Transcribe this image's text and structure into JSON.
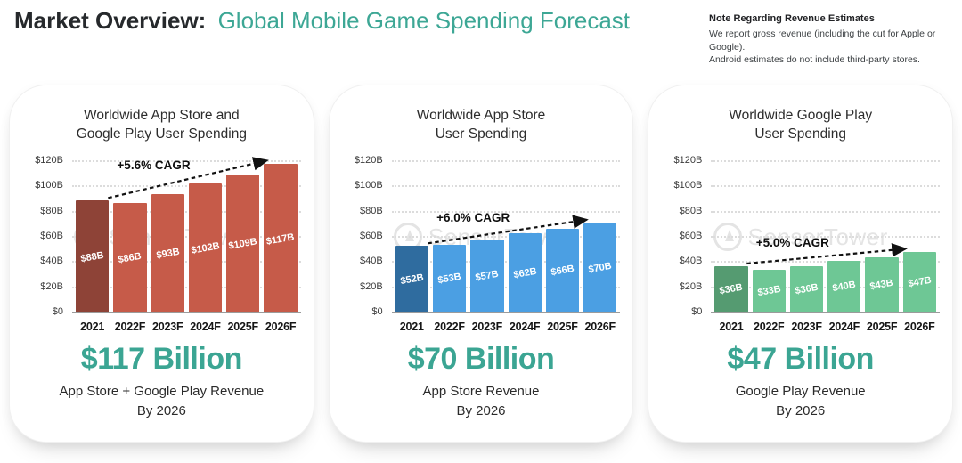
{
  "header": {
    "title_bold": "Market Overview:",
    "title_accent": "Global Mobile Game Spending Forecast"
  },
  "note": {
    "heading": "Note Regarding Revenue Estimates",
    "line1": "We report gross revenue (including the cut for Apple or Google).",
    "line2": "Android estimates do not include third-party stores."
  },
  "watermark_text": "SensorTower",
  "colors": {
    "accent_teal": "#3BA593",
    "red_dark": "#8E4337",
    "red": "#C65B49",
    "blue_dark": "#2F6C9F",
    "blue": "#4B9FE3",
    "green_dark": "#559B71",
    "green": "#6EC795"
  },
  "axis": {
    "y_labels": [
      "$120B",
      "$100B",
      "$80B",
      "$60B",
      "$40B",
      "$20B",
      "$0"
    ],
    "y_max": 120
  },
  "chart_data": [
    {
      "type": "bar",
      "title_line1": "Worldwide App Store and",
      "title_line2": "Google Play User Spending",
      "categories": [
        "2021",
        "2022F",
        "2023F",
        "2024F",
        "2025F",
        "2026F"
      ],
      "values": [
        88,
        86,
        93,
        102,
        109,
        117
      ],
      "bar_labels": [
        "$88B",
        "$86B",
        "$93B",
        "$102B",
        "$109B",
        "$117B"
      ],
      "cagr_label": "+5.6% CAGR",
      "ylim": [
        0,
        120
      ],
      "grid": "dotted-horizontal",
      "colors": {
        "first_bar": "#8E4337",
        "bars": "#C65B49"
      },
      "stat": {
        "value": "$117 Billion",
        "caption_line1": "App Store + Google Play Revenue",
        "caption_line2": "By 2026"
      }
    },
    {
      "type": "bar",
      "title_line1": "Worldwide App Store",
      "title_line2": "User Spending",
      "categories": [
        "2021",
        "2022F",
        "2023F",
        "2024F",
        "2025F",
        "2026F"
      ],
      "values": [
        52,
        53,
        57,
        62,
        66,
        70
      ],
      "bar_labels": [
        "$52B",
        "$53B",
        "$57B",
        "$62B",
        "$66B",
        "$70B"
      ],
      "cagr_label": "+6.0% CAGR",
      "ylim": [
        0,
        120
      ],
      "grid": "dotted-horizontal",
      "colors": {
        "first_bar": "#2F6C9F",
        "bars": "#4B9FE3"
      },
      "stat": {
        "value": "$70 Billion",
        "caption_line1": "App Store Revenue",
        "caption_line2": "By 2026"
      }
    },
    {
      "type": "bar",
      "title_line1": "Worldwide Google Play",
      "title_line2": "User Spending",
      "categories": [
        "2021",
        "2022F",
        "2023F",
        "2024F",
        "2025F",
        "2026F"
      ],
      "values": [
        36,
        33,
        36,
        40,
        43,
        47
      ],
      "bar_labels": [
        "$36B",
        "$33B",
        "$36B",
        "$40B",
        "$43B",
        "$47B"
      ],
      "cagr_label": "+5.0% CAGR",
      "ylim": [
        0,
        120
      ],
      "grid": "dotted-horizontal",
      "colors": {
        "first_bar": "#559B71",
        "bars": "#6EC795"
      },
      "stat": {
        "value": "$47 Billion",
        "caption_line1": "Google Play Revenue",
        "caption_line2": "By 2026"
      }
    }
  ]
}
